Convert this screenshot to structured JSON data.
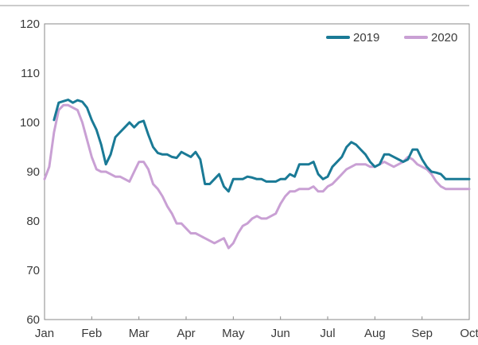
{
  "chart_data": {
    "type": "line",
    "title": "",
    "xlabel": "",
    "ylabel": "",
    "xlim": [
      0,
      9
    ],
    "ylim": [
      60,
      120
    ],
    "yticks": [
      60,
      70,
      80,
      90,
      100,
      110,
      120
    ],
    "xticks": [
      "Jan",
      "Feb",
      "Mar",
      "Apr",
      "May",
      "Jun",
      "Jul",
      "Aug",
      "Sep",
      "Oct"
    ],
    "grid": false,
    "legend_position": "top-right",
    "series": [
      {
        "name": "2019",
        "color": "#1a7a96",
        "x": [
          0.2,
          0.3,
          0.4,
          0.5,
          0.6,
          0.7,
          0.8,
          0.9,
          1.0,
          1.1,
          1.2,
          1.3,
          1.4,
          1.5,
          1.6,
          1.7,
          1.8,
          1.9,
          2.0,
          2.1,
          2.2,
          2.3,
          2.4,
          2.5,
          2.6,
          2.7,
          2.8,
          2.9,
          3.0,
          3.1,
          3.2,
          3.3,
          3.4,
          3.5,
          3.6,
          3.7,
          3.8,
          3.9,
          4.0,
          4.1,
          4.2,
          4.3,
          4.4,
          4.5,
          4.6,
          4.7,
          4.8,
          4.9,
          5.0,
          5.1,
          5.2,
          5.3,
          5.4,
          5.5,
          5.6,
          5.7,
          5.8,
          5.9,
          6.0,
          6.1,
          6.2,
          6.3,
          6.4,
          6.5,
          6.6,
          6.7,
          6.8,
          6.9,
          7.0,
          7.1,
          7.2,
          7.3,
          7.4,
          7.5,
          7.6,
          7.7,
          7.8,
          7.9,
          8.0,
          8.1,
          8.2,
          8.3,
          8.4,
          8.5,
          8.6,
          8.7,
          8.8,
          8.9,
          9.0
        ],
        "values": [
          100.5,
          104.0,
          104.3,
          104.6,
          104.0,
          104.5,
          104.2,
          103.0,
          100.5,
          98.5,
          95.5,
          91.5,
          93.5,
          97.0,
          98.0,
          99.0,
          100.0,
          99.0,
          100.0,
          100.3,
          97.5,
          95.0,
          93.8,
          93.5,
          93.5,
          93.0,
          92.8,
          94.0,
          93.5,
          93.0,
          94.0,
          92.5,
          87.5,
          87.5,
          88.5,
          89.5,
          87.0,
          86.0,
          88.5,
          88.5,
          88.5,
          89.0,
          88.8,
          88.5,
          88.5,
          88.0,
          88.0,
          88.0,
          88.5,
          88.5,
          89.5,
          89.0,
          91.5,
          91.5,
          91.5,
          92.0,
          89.5,
          88.5,
          89.0,
          91.0,
          92.0,
          93.0,
          95.0,
          96.0,
          95.5,
          94.5,
          93.5,
          92.0,
          91.0,
          91.5,
          93.5,
          93.5,
          93.0,
          92.5,
          92.0,
          92.5,
          94.5,
          94.5,
          92.5,
          91.0,
          90.0,
          89.8,
          89.5,
          88.5,
          88.5,
          88.5,
          88.5,
          88.5,
          88.5
        ]
      },
      {
        "name": "2020",
        "color": "#c9a0d4",
        "x": [
          0.0,
          0.1,
          0.2,
          0.3,
          0.4,
          0.5,
          0.6,
          0.7,
          0.8,
          0.9,
          1.0,
          1.1,
          1.2,
          1.3,
          1.4,
          1.5,
          1.6,
          1.7,
          1.8,
          1.9,
          2.0,
          2.1,
          2.2,
          2.3,
          2.4,
          2.5,
          2.6,
          2.7,
          2.8,
          2.9,
          3.0,
          3.1,
          3.2,
          3.3,
          3.4,
          3.5,
          3.6,
          3.7,
          3.8,
          3.9,
          4.0,
          4.1,
          4.2,
          4.3,
          4.4,
          4.5,
          4.6,
          4.7,
          4.8,
          4.9,
          5.0,
          5.1,
          5.2,
          5.3,
          5.4,
          5.5,
          5.6,
          5.7,
          5.8,
          5.9,
          6.0,
          6.1,
          6.2,
          6.3,
          6.4,
          6.5,
          6.6,
          6.7,
          6.8,
          6.9,
          7.0,
          7.1,
          7.2,
          7.3,
          7.4,
          7.5,
          7.6,
          7.7,
          7.8,
          7.9,
          8.0,
          8.1,
          8.2,
          8.3,
          8.4,
          8.5,
          8.6,
          8.7,
          8.8,
          8.9,
          9.0
        ],
        "values": [
          88.5,
          91.0,
          98.0,
          102.5,
          103.5,
          103.5,
          103.0,
          102.5,
          100.0,
          96.5,
          93.0,
          90.5,
          90.0,
          90.0,
          89.5,
          89.0,
          89.0,
          88.5,
          88.0,
          90.0,
          92.0,
          92.0,
          90.5,
          87.5,
          86.5,
          85.0,
          83.0,
          81.5,
          79.5,
          79.5,
          78.5,
          77.5,
          77.5,
          77.0,
          76.5,
          76.0,
          75.5,
          76.0,
          76.5,
          74.5,
          75.5,
          77.5,
          79.0,
          79.5,
          80.5,
          81.0,
          80.5,
          80.5,
          81.0,
          81.5,
          83.5,
          85.0,
          86.0,
          86.0,
          86.5,
          86.5,
          86.5,
          87.0,
          86.0,
          86.0,
          87.0,
          87.5,
          88.5,
          89.5,
          90.5,
          91.0,
          91.5,
          91.5,
          91.5,
          91.0,
          91.0,
          91.5,
          92.0,
          91.5,
          91.0,
          91.5,
          92.0,
          93.0,
          92.5,
          91.5,
          91.0,
          90.5,
          89.5,
          88.0,
          87.0,
          86.5,
          86.5,
          86.5,
          86.5,
          86.5,
          86.5
        ]
      }
    ]
  }
}
